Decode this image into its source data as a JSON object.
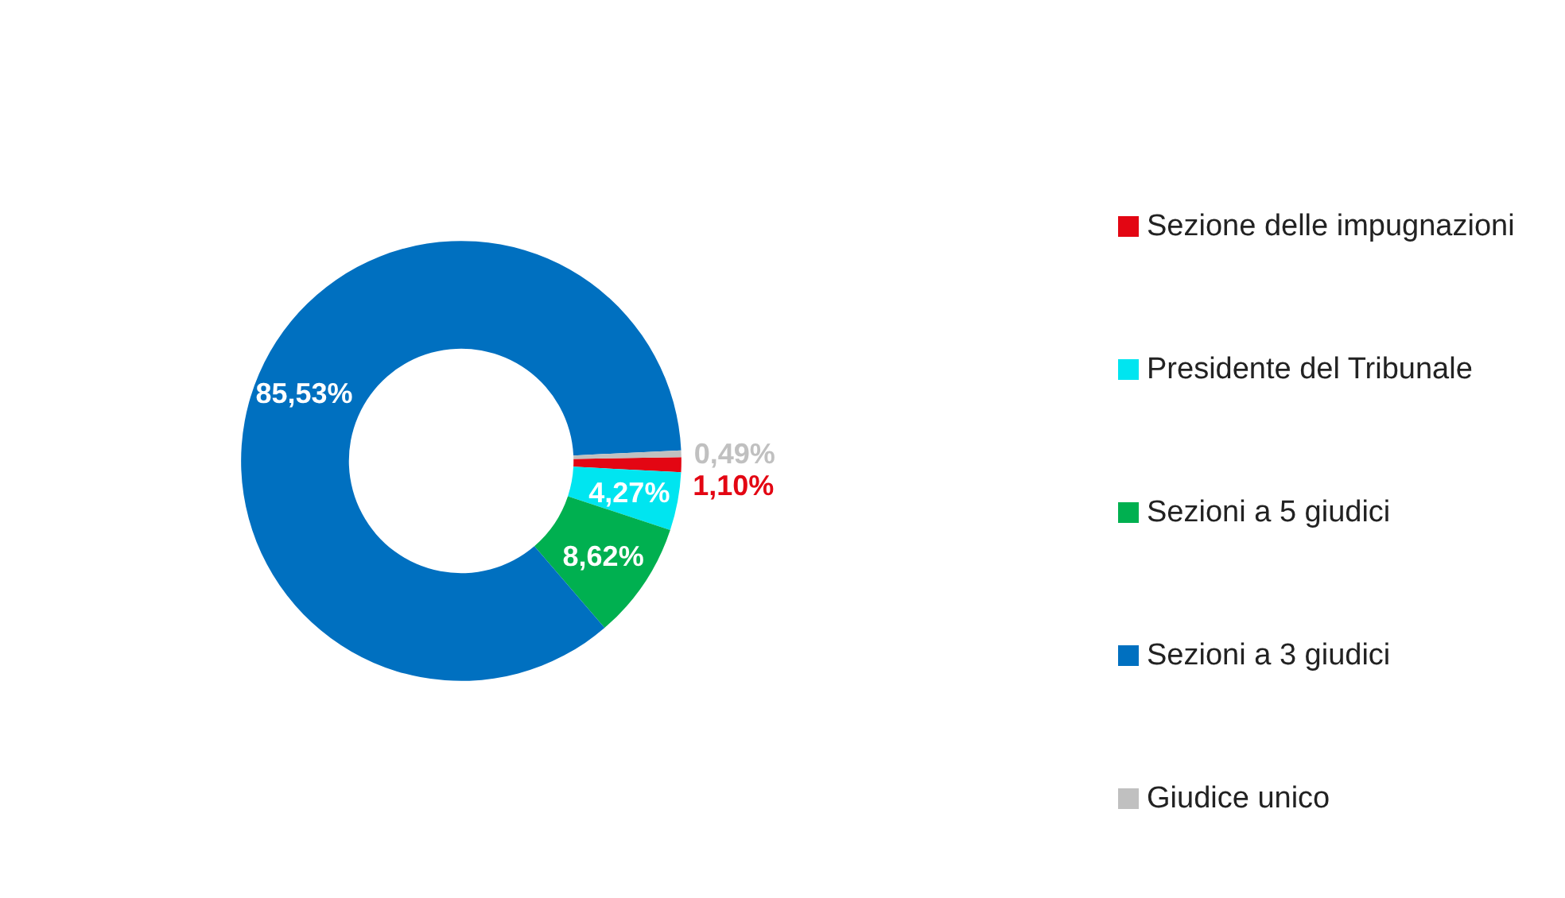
{
  "chart_data": {
    "type": "donut",
    "categories": [
      "Sezione delle impugnazioni",
      "Presidente del Tribunale",
      "Sezioni a 5 giudici",
      "Sezioni a 3 giudici",
      "Giudice unico"
    ],
    "values": [
      1.1,
      4.27,
      8.62,
      85.53,
      0.49
    ],
    "colors": [
      "#e30613",
      "#00e5f0",
      "#00b050",
      "#0070c0",
      "#c0c0c0"
    ],
    "value_labels": [
      "1,10%",
      "4,27%",
      "8,62%",
      "85,53%",
      "0,49%"
    ],
    "legend": "right"
  }
}
